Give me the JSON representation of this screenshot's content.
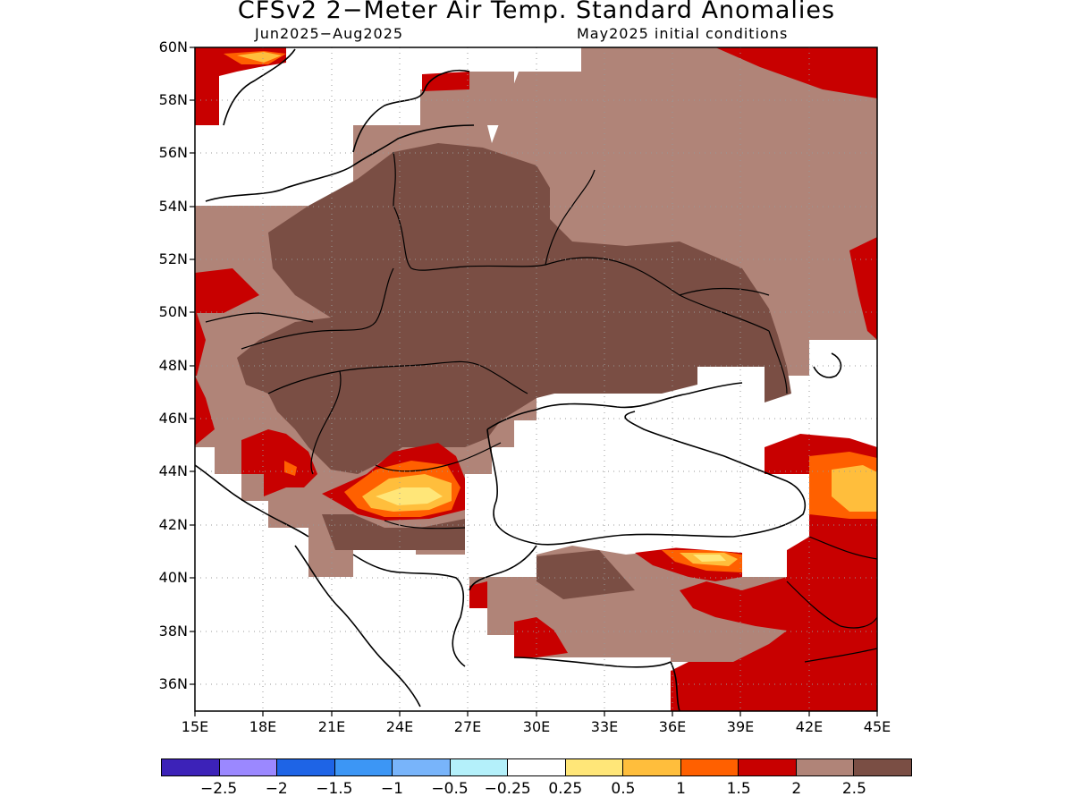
{
  "title": "CFSv2 2−Meter Air Temp. Standard Anomalies",
  "subtitle_left": "Jun2025−Aug2025",
  "subtitle_right": "May2025 initial conditions",
  "map": {
    "region": "Eastern Europe / Black Sea",
    "lon_range": [
      15,
      45
    ],
    "lat_range": [
      35,
      60
    ],
    "lat_ticks": [
      "60N",
      "58N",
      "56N",
      "54N",
      "52N",
      "50N",
      "48N",
      "46N",
      "44N",
      "42N",
      "40N",
      "38N",
      "36N"
    ],
    "lon_ticks": [
      "15E",
      "18E",
      "21E",
      "24E",
      "27E",
      "30E",
      "33E",
      "36E",
      "39E",
      "42E",
      "45E"
    ],
    "grid": "dotted"
  },
  "colorbar": {
    "colors": [
      "#3c22b8",
      "#9b88ff",
      "#1e64e6",
      "#3c96f5",
      "#78b4fa",
      "#b4f0fa",
      "#ffffff",
      "#ffe678",
      "#ffbe3c",
      "#ff6000",
      "#c80000",
      "#b08478",
      "#7a4e44"
    ],
    "labels": [
      "−2.5",
      "−2",
      "−1.5",
      "−1",
      "−0.5",
      "−0.25",
      "0.25",
      "0.5",
      "1",
      "1.5",
      "2",
      "2.5"
    ]
  },
  "colors": {
    "anom_2_to_2_5": "#b08478",
    "anom_gt_2_5": "#7a4e44",
    "anom_1_5_to_2": "#c80000",
    "anom_1_to_1_5": "#ff6000",
    "anom_0_5_to_1": "#ffbe3c",
    "anom_0_25_to_0_5": "#ffe678"
  }
}
